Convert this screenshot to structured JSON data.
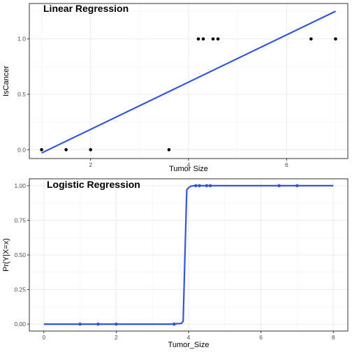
{
  "chart_data": [
    {
      "type": "scatter",
      "title": "Linear Regression",
      "xlabel": "Tumor Size",
      "ylabel": "IsCancer",
      "xlim": [
        0.75,
        7.25
      ],
      "ylim": [
        -0.08,
        1.32
      ],
      "x_ticks": [
        2,
        4,
        6
      ],
      "x_tick_labels": [
        "2",
        "4",
        "6"
      ],
      "y_ticks": [
        0,
        0.5,
        1
      ],
      "y_tick_labels": [
        "0.0",
        "0.5",
        "1.0"
      ],
      "grid": true,
      "points": {
        "x": [
          1,
          1.5,
          2,
          3.6,
          4.2,
          4.3,
          4.5,
          4.6,
          6.5,
          7
        ],
        "y": [
          0,
          0,
          0,
          0,
          1,
          1,
          1,
          1,
          1,
          1
        ]
      },
      "fit_line": {
        "x": [
          1,
          7
        ],
        "y": [
          -0.03,
          1.25
        ]
      },
      "colors": {
        "points": "#000000",
        "fit": "#3355dd",
        "grid": "#ebebeb",
        "frame": "#333333"
      }
    },
    {
      "type": "scatter",
      "title": "Logistic Regression",
      "xlabel": "Tumor_Size",
      "ylabel": "Pr(Y|X=x)",
      "xlim": [
        -0.4,
        8.4
      ],
      "ylim": [
        -0.05,
        1.05
      ],
      "x_ticks": [
        0,
        2,
        4,
        6,
        8
      ],
      "x_tick_labels": [
        "0",
        "2",
        "4",
        "6",
        "8"
      ],
      "y_ticks": [
        0,
        0.25,
        0.5,
        0.75,
        1
      ],
      "y_tick_labels": [
        "0.00",
        "0.25",
        "0.50",
        "0.75",
        "1.00"
      ],
      "grid": true,
      "points": {
        "x": [
          1,
          1.5,
          2,
          3.6,
          4.2,
          4.3,
          4.5,
          4.6,
          6.5,
          7
        ],
        "y": [
          0,
          0,
          0,
          0,
          1,
          1,
          1,
          1,
          1,
          1
        ]
      },
      "fit_curve": {
        "x": [
          0,
          3.5,
          3.8,
          3.85,
          3.9,
          3.95,
          4.0,
          4.05,
          4.1,
          4.15,
          4.2,
          4.5,
          8
        ],
        "y": [
          0,
          0,
          0.005,
          0.02,
          0.5,
          0.97,
          0.985,
          0.995,
          0.998,
          1.0,
          1.0,
          1.0,
          1.0
        ]
      },
      "colors": {
        "points": "#3355dd",
        "fit": "#3355dd",
        "grid": "#ebebeb",
        "frame": "#333333"
      }
    }
  ]
}
